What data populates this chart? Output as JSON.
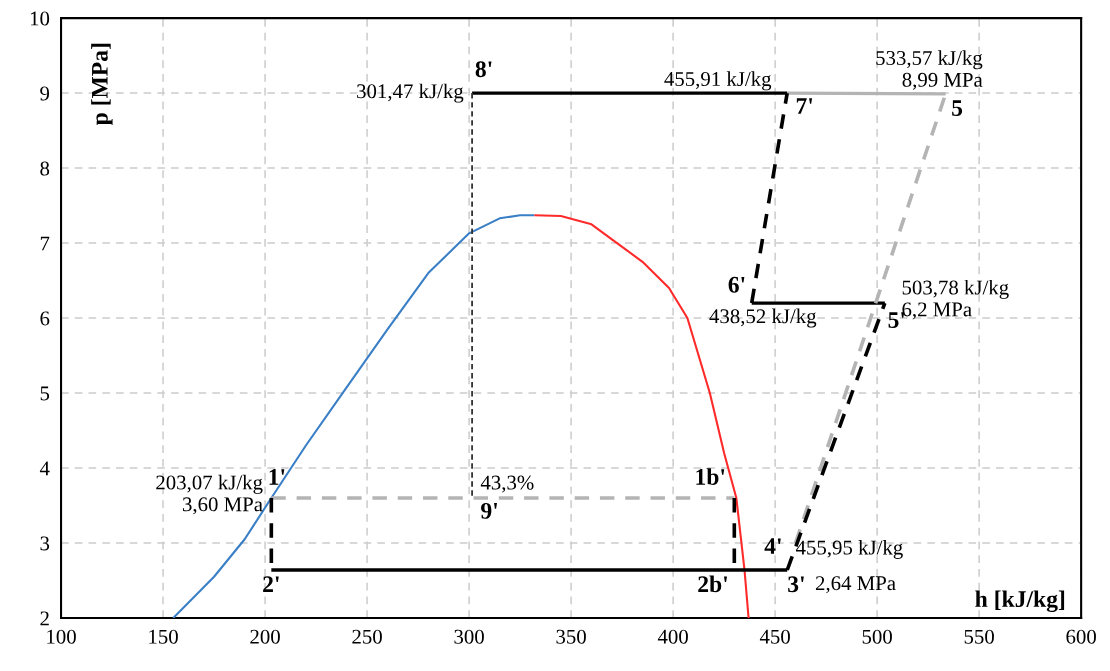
{
  "chart_data": {
    "type": "line",
    "xlabel": "h [kJ/kg]",
    "ylabel": "p [MPa]",
    "xlim": [
      100,
      600
    ],
    "ylim": [
      2,
      10
    ],
    "xticks": [
      100,
      150,
      200,
      250,
      300,
      350,
      400,
      450,
      500,
      550,
      600
    ],
    "yticks": [
      2,
      3,
      4,
      5,
      6,
      7,
      8,
      9,
      10
    ],
    "grid": true,
    "marker": "none",
    "series": [
      {
        "color": "#3a7fc6",
        "line_style": "solid",
        "x": [
          155,
          175,
          190,
          203.07,
          220,
          238,
          260,
          280,
          300,
          315,
          325,
          332
        ],
        "values": [
          2,
          2.55,
          3.05,
          3.6,
          4.3,
          5.0,
          5.85,
          6.6,
          7.13,
          7.33,
          7.37,
          7.37
        ]
      },
      {
        "color": "#ff2a2a",
        "line_style": "solid",
        "x": [
          332,
          345,
          360,
          370,
          385,
          398,
          407,
          418,
          425,
          431,
          435,
          437
        ],
        "values": [
          7.37,
          7.36,
          7.25,
          7.05,
          6.75,
          6.4,
          6.0,
          5.0,
          4.2,
          3.6,
          2.64,
          2
        ]
      },
      {
        "color": "#000000",
        "line_style": "solid",
        "x": [
          301.47,
          455.91
        ],
        "values": [
          9,
          9
        ]
      },
      {
        "color": "#b4b4b4",
        "line_style": "solid",
        "x": [
          455.91,
          533.57
        ],
        "values": [
          9,
          8.99
        ]
      },
      {
        "color": "#000000",
        "line_style": "solid",
        "x": [
          203.07,
          455.95
        ],
        "values": [
          2.64,
          2.64
        ]
      },
      {
        "color": "#000000",
        "line_style": "solid",
        "x": [
          438.52,
          503.78
        ],
        "values": [
          6.2,
          6.2
        ]
      },
      {
        "color": "#b4b4b4",
        "line_style": "dashed",
        "x": [
          203.07,
          430
        ],
        "values": [
          3.6,
          3.6
        ]
      },
      {
        "color": "#000000",
        "line_style": "dashed",
        "x": [
          203.07,
          203.07
        ],
        "values": [
          3.6,
          2.64
        ]
      },
      {
        "color": "#000000",
        "line_style": "dashed",
        "x": [
          430,
          430
        ],
        "values": [
          3.6,
          2.64
        ]
      },
      {
        "color": "#b4b4b4",
        "line_style": "dashed",
        "x": [
          460,
          533.57
        ],
        "values": [
          3.0,
          8.99
        ]
      },
      {
        "color": "#000000",
        "line_style": "dashed",
        "x": [
          455.95,
          503.78
        ],
        "values": [
          2.64,
          6.2
        ]
      },
      {
        "color": "#000000",
        "line_style": "dashed",
        "x": [
          438.52,
          455.91
        ],
        "values": [
          6.2,
          9
        ]
      },
      {
        "color": "#333333",
        "line_style": "dotted",
        "x": [
          301.47,
          301.47
        ],
        "values": [
          9,
          3.6
        ]
      }
    ],
    "annotations": [
      {
        "text": "8'",
        "x": 301.47,
        "y": 9
      },
      {
        "text": "301,47 kJ/kg",
        "x": 301.47,
        "y": 9
      },
      {
        "text": "455,91 kJ/kg",
        "x": 455.91,
        "y": 9
      },
      {
        "text": "7'",
        "x": 455.91,
        "y": 9
      },
      {
        "text": "533,57 kJ/kg\n8,99 MPa",
        "x": 533.57,
        "y": 8.99
      },
      {
        "text": "5",
        "x": 533.57,
        "y": 8.99
      },
      {
        "text": "6'",
        "x": 438.52,
        "y": 6.2
      },
      {
        "text": "438,52 kJ/kg",
        "x": 438.52,
        "y": 6.2
      },
      {
        "text": "503,78 kJ/kg\n6,2 MPa",
        "x": 503.78,
        "y": 6.2
      },
      {
        "text": "5'",
        "x": 503.78,
        "y": 6.2
      },
      {
        "text": "1'",
        "x": 203.07,
        "y": 3.6
      },
      {
        "text": "203,07 kJ/kg\n3,60 MPa",
        "x": 203.07,
        "y": 3.6
      },
      {
        "text": "43,3%",
        "x": 301.47,
        "y": 3.6
      },
      {
        "text": "9'",
        "x": 301.47,
        "y": 3.6
      },
      {
        "text": "1b'",
        "x": 430,
        "y": 3.6
      },
      {
        "text": "2'",
        "x": 203.07,
        "y": 2.64
      },
      {
        "text": "2b'",
        "x": 430,
        "y": 2.64
      },
      {
        "text": "3'",
        "x": 455.95,
        "y": 2.64
      },
      {
        "text": "4'",
        "x": 455.95,
        "y": 2.64
      },
      {
        "text": "455,95 kJ/kg",
        "x": 455.95,
        "y": 2.64
      },
      {
        "text": "2,64 MPa",
        "x": 455.95,
        "y": 2.64
      }
    ]
  }
}
